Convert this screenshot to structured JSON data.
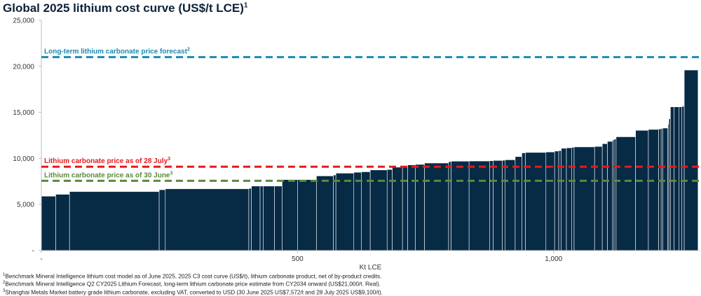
{
  "title": "Global 2025 lithium cost curve (US$/t LCE)",
  "title_note": "1",
  "chart_data": {
    "type": "bar",
    "subtype": "cost-curve (variable-width bars)",
    "bar_color": "#072a45",
    "xlabel": "Kt LCE",
    "ylabel": "",
    "xlim": [
      0,
      1285
    ],
    "ylim": [
      0,
      25000
    ],
    "xticks": [
      {
        "value": 0,
        "label": "-"
      },
      {
        "value": 500,
        "label": "500"
      },
      {
        "value": 1000,
        "label": "1,000"
      }
    ],
    "yticks": [
      {
        "value": 0,
        "label": "-"
      },
      {
        "value": 5000,
        "label": "5,000"
      },
      {
        "value": 10000,
        "label": "10,000"
      },
      {
        "value": 15000,
        "label": "15,000"
      },
      {
        "value": 20000,
        "label": "20,000"
      },
      {
        "value": 25000,
        "label": "25,000"
      }
    ],
    "grid": false,
    "bars": [
      {
        "x0": 0,
        "x1": 28,
        "value": 5900
      },
      {
        "x0": 28,
        "x1": 55,
        "value": 6100
      },
      {
        "x0": 55,
        "x1": 230,
        "value": 6400
      },
      {
        "x0": 230,
        "x1": 242,
        "value": 6600
      },
      {
        "x0": 242,
        "x1": 405,
        "value": 6700
      },
      {
        "x0": 405,
        "x1": 410,
        "value": 6750
      },
      {
        "x0": 410,
        "x1": 427,
        "value": 7000
      },
      {
        "x0": 427,
        "x1": 433,
        "value": 7000
      },
      {
        "x0": 433,
        "x1": 455,
        "value": 7000
      },
      {
        "x0": 455,
        "x1": 470,
        "value": 7000
      },
      {
        "x0": 470,
        "x1": 500,
        "value": 7700
      },
      {
        "x0": 500,
        "x1": 537,
        "value": 7700
      },
      {
        "x0": 537,
        "x1": 570,
        "value": 8100
      },
      {
        "x0": 570,
        "x1": 575,
        "value": 8200
      },
      {
        "x0": 575,
        "x1": 610,
        "value": 8400
      },
      {
        "x0": 610,
        "x1": 625,
        "value": 8500
      },
      {
        "x0": 625,
        "x1": 642,
        "value": 8550
      },
      {
        "x0": 642,
        "x1": 675,
        "value": 8750
      },
      {
        "x0": 675,
        "x1": 685,
        "value": 8800
      },
      {
        "x0": 685,
        "x1": 705,
        "value": 9050
      },
      {
        "x0": 705,
        "x1": 715,
        "value": 9100
      },
      {
        "x0": 715,
        "x1": 730,
        "value": 9300
      },
      {
        "x0": 730,
        "x1": 748,
        "value": 9350
      },
      {
        "x0": 748,
        "x1": 795,
        "value": 9500
      },
      {
        "x0": 795,
        "x1": 800,
        "value": 9650
      },
      {
        "x0": 800,
        "x1": 835,
        "value": 9700
      },
      {
        "x0": 835,
        "x1": 875,
        "value": 9720
      },
      {
        "x0": 875,
        "x1": 882,
        "value": 9750
      },
      {
        "x0": 882,
        "x1": 900,
        "value": 9780
      },
      {
        "x0": 900,
        "x1": 905,
        "value": 9800
      },
      {
        "x0": 905,
        "x1": 925,
        "value": 9850
      },
      {
        "x0": 925,
        "x1": 938,
        "value": 10200
      },
      {
        "x0": 938,
        "x1": 945,
        "value": 10600
      },
      {
        "x0": 945,
        "x1": 985,
        "value": 10650
      },
      {
        "x0": 985,
        "x1": 1002,
        "value": 10700
      },
      {
        "x0": 1002,
        "x1": 1010,
        "value": 10800
      },
      {
        "x0": 1010,
        "x1": 1015,
        "value": 10850
      },
      {
        "x0": 1015,
        "x1": 1025,
        "value": 11100
      },
      {
        "x0": 1025,
        "x1": 1035,
        "value": 11150
      },
      {
        "x0": 1035,
        "x1": 1040,
        "value": 11200
      },
      {
        "x0": 1040,
        "x1": 1080,
        "value": 11250
      },
      {
        "x0": 1080,
        "x1": 1095,
        "value": 11300
      },
      {
        "x0": 1095,
        "x1": 1105,
        "value": 11600
      },
      {
        "x0": 1105,
        "x1": 1115,
        "value": 11850
      },
      {
        "x0": 1115,
        "x1": 1118,
        "value": 12000
      },
      {
        "x0": 1118,
        "x1": 1122,
        "value": 12100
      },
      {
        "x0": 1122,
        "x1": 1160,
        "value": 12350
      },
      {
        "x0": 1160,
        "x1": 1185,
        "value": 13050
      },
      {
        "x0": 1185,
        "x1": 1205,
        "value": 13150
      },
      {
        "x0": 1205,
        "x1": 1210,
        "value": 13200
      },
      {
        "x0": 1210,
        "x1": 1213,
        "value": 13250
      },
      {
        "x0": 1213,
        "x1": 1223,
        "value": 13300
      },
      {
        "x0": 1223,
        "x1": 1225,
        "value": 13700
      },
      {
        "x0": 1225,
        "x1": 1228,
        "value": 14300
      },
      {
        "x0": 1228,
        "x1": 1235,
        "value": 15600
      },
      {
        "x0": 1235,
        "x1": 1245,
        "value": 15600
      },
      {
        "x0": 1245,
        "x1": 1250,
        "value": 15600
      },
      {
        "x0": 1250,
        "x1": 1255,
        "value": 15650
      },
      {
        "x0": 1255,
        "x1": 1282,
        "value": 19600
      }
    ],
    "reference_lines": [
      {
        "label": "Long-term lithium carbonate price forecast",
        "note": "2",
        "value": 21000,
        "color": "#1b8bb0",
        "label_position": "above"
      },
      {
        "label": "Lithium carbonate price as of 28 July",
        "note": "3",
        "value": 9100,
        "color": "#e8191c",
        "label_position": "above"
      },
      {
        "label": "Lithium carbonate price as of 30 June",
        "note": "3",
        "value": 7572,
        "color": "#5b8a3a",
        "label_position": "above"
      }
    ]
  },
  "footnotes": [
    {
      "marker": "1",
      "text": "Benchmark Mineral Intelligence lithium cost model as of June 2025. 2025 C3 cost curve (US$/t), lithium carbonate product, net of by-product credits."
    },
    {
      "marker": "2",
      "text": "Benchmark Mineral Intelligence Q2 CY2025 Lithium Forecast, long-term lithium carbonate price estimate from CY2034 onward (US$21,000/t. Real)."
    },
    {
      "marker": "3",
      "text": "Shanghai Metals Market battery grade lithium carbonate, excluding VAT, converted to USD (30 June 2025 US$7,572/t and 28 July 2025 US$9,100/t)."
    }
  ]
}
